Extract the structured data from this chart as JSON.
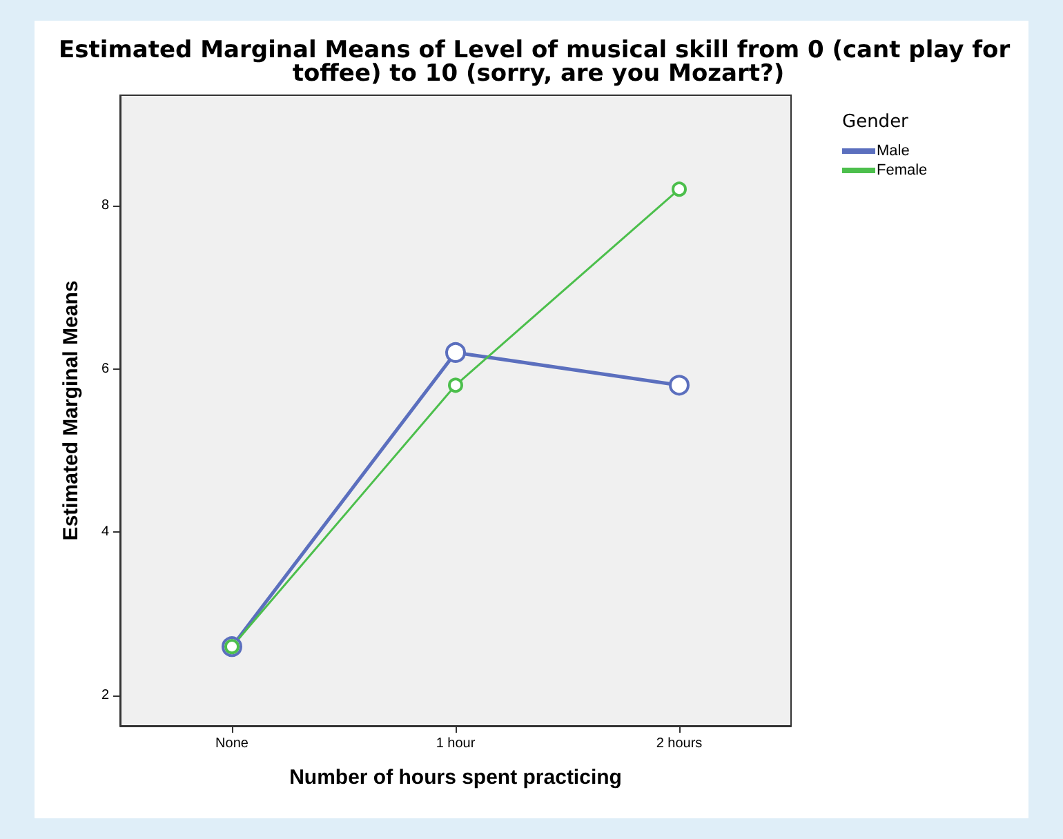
{
  "chart_data": {
    "type": "line",
    "title": "Estimated Marginal Means of Level of musical skill from 0 (cant play for toffee) to 10 (sorry, are you Mozart?)",
    "xlabel": "Number of hours spent practicing",
    "ylabel": "Estimated Marginal Means",
    "legend_title": "Gender",
    "categories": [
      "None",
      "1 hour",
      "2 hours"
    ],
    "series": [
      {
        "name": "Male",
        "color": "#5b6fbe",
        "values": [
          2.6,
          6.2,
          5.8
        ]
      },
      {
        "name": "Female",
        "color": "#4cbf4c",
        "values": [
          2.6,
          5.8,
          8.2
        ]
      }
    ],
    "ylim": [
      1.63,
      9.35
    ],
    "yticks": [
      2,
      4,
      6,
      8
    ],
    "grid": false,
    "legend": "top right",
    "marker": "circle",
    "line_style": "solid"
  }
}
